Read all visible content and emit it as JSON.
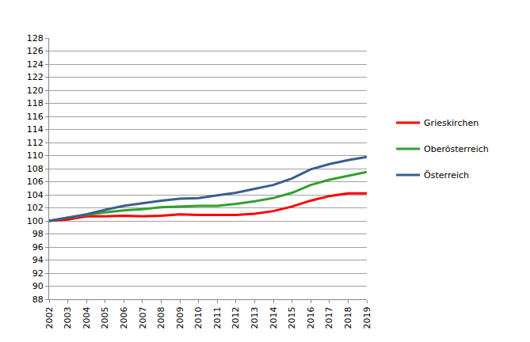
{
  "chart_data": {
    "type": "line",
    "x": [
      2002,
      2003,
      2004,
      2005,
      2006,
      2007,
      2008,
      2009,
      2010,
      2011,
      2012,
      2013,
      2014,
      2015,
      2016,
      2017,
      2018,
      2019
    ],
    "series": [
      {
        "name": "Grieskirchen",
        "color": "#ff0000",
        "values": [
          100,
          100.2,
          100.7,
          100.7,
          100.8,
          100.7,
          100.8,
          101.0,
          100.9,
          100.9,
          100.9,
          101.1,
          101.5,
          102.2,
          103.1,
          103.8,
          104.2,
          104.2
        ]
      },
      {
        "name": "Oberösterreich",
        "color": "#33a02c",
        "values": [
          100,
          100.5,
          100.9,
          101.3,
          101.6,
          101.8,
          102.1,
          102.2,
          102.3,
          102.3,
          102.6,
          103.0,
          103.5,
          104.3,
          105.5,
          106.3,
          106.9,
          107.5
        ]
      },
      {
        "name": "Österreich",
        "color": "#3a5f8f",
        "values": [
          100,
          100.5,
          101.0,
          101.7,
          102.3,
          102.7,
          103.1,
          103.4,
          103.5,
          103.9,
          104.3,
          104.9,
          105.5,
          106.5,
          107.9,
          108.7,
          109.3,
          109.8
        ]
      }
    ],
    "xlim": [
      2002,
      2019
    ],
    "xticks": [
      2002,
      2003,
      2004,
      2005,
      2006,
      2007,
      2008,
      2009,
      2010,
      2011,
      2012,
      2013,
      2014,
      2015,
      2016,
      2017,
      2018,
      2019
    ],
    "ylim": [
      88,
      128
    ],
    "yticks": [
      88,
      90,
      92,
      94,
      96,
      98,
      100,
      102,
      104,
      106,
      108,
      110,
      112,
      114,
      116,
      118,
      120,
      122,
      124,
      126,
      128
    ],
    "grid": true,
    "legend": "right"
  }
}
